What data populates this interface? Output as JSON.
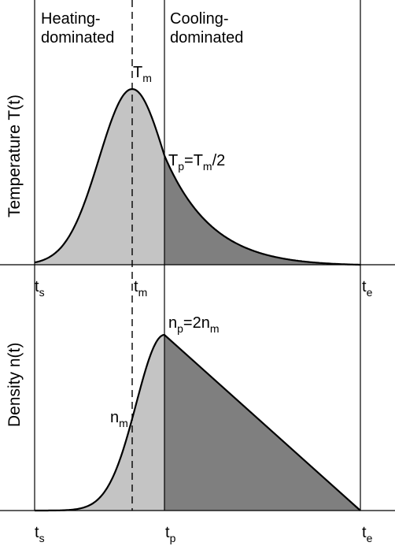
{
  "regions": {
    "heating": [
      "Heating-",
      "dominated"
    ],
    "cooling": [
      "Cooling-",
      "dominated"
    ]
  },
  "top_panel": {
    "ylabel": "Temperature T(t)",
    "peak": {
      "base": "T",
      "sub": "m"
    },
    "tp_label": [
      {
        "t": "T",
        "s": false
      },
      {
        "t": "p",
        "s": true
      },
      {
        "t": "=T",
        "s": false
      },
      {
        "t": "m",
        "s": true
      },
      {
        "t": "/2",
        "s": false
      }
    ],
    "ticks": [
      {
        "base": "t",
        "sub": "s"
      },
      {
        "base": "t",
        "sub": "m"
      },
      {
        "base": "t",
        "sub": "e"
      }
    ]
  },
  "bottom_panel": {
    "ylabel": "Density n(t)",
    "nm": {
      "base": "n",
      "sub": "m"
    },
    "np_label": [
      {
        "t": "n",
        "s": false
      },
      {
        "t": "p",
        "s": true
      },
      {
        "t": "=2n",
        "s": false
      },
      {
        "t": "m",
        "s": true
      }
    ],
    "ticks": [
      {
        "base": "t",
        "sub": "s"
      },
      {
        "base": "t",
        "sub": "p"
      },
      {
        "base": "t",
        "sub": "e"
      }
    ]
  },
  "colors": {
    "heating_fill": "#c4c4c4",
    "cooling_fill": "#7f7f7f",
    "line": "#000000"
  }
}
